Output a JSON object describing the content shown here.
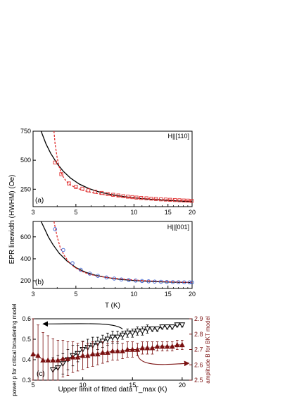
{
  "figure": {
    "shared_ylabel": "EPR linewidth (HWHM) (Oe)"
  },
  "chart_data": [
    {
      "type": "scatter",
      "panel_label": "(a)",
      "annotation": "H||[110]",
      "xlabel": "",
      "ylabel": "",
      "xscale": "log",
      "xlim": [
        3,
        20
      ],
      "ylim": [
        100,
        750
      ],
      "xticks": [
        3,
        5,
        10,
        15,
        20
      ],
      "yticks": [
        250,
        500,
        750
      ],
      "grid": false,
      "marker_color": "#e03030",
      "x": [
        3.9,
        4.2,
        4.6,
        5.0,
        5.4,
        5.8,
        6.3,
        6.8,
        7.3,
        7.8,
        8.3,
        8.8,
        9.3,
        9.8,
        10.3,
        10.9,
        11.6,
        12.3,
        13.0,
        13.8,
        14.6,
        15.4,
        16.3,
        17.2,
        18.1,
        19.0,
        19.9
      ],
      "y": [
        480,
        380,
        300,
        270,
        255,
        240,
        228,
        218,
        210,
        202,
        196,
        190,
        186,
        182,
        178,
        175,
        172,
        169,
        166,
        163,
        161,
        159,
        157,
        155,
        153,
        152,
        150
      ],
      "fits": [
        {
          "name": "critical",
          "style": "solid",
          "color": "#000000",
          "x": [
            3.3,
            3.5,
            3.7,
            4.0,
            4.3,
            4.7,
            5.2,
            5.8,
            6.5,
            7.3,
            8.3,
            9.5,
            11.0,
            13.0,
            15.5,
            18.0,
            20.0
          ],
          "y": [
            750,
            640,
            560,
            470,
            405,
            345,
            295,
            258,
            230,
            210,
            193,
            180,
            169,
            160,
            152,
            147,
            144
          ]
        },
        {
          "name": "BKT",
          "style": "dashed",
          "color": "#e03030",
          "x": [
            3.85,
            3.9,
            4.0,
            4.1,
            4.25,
            4.45,
            4.7,
            5.0,
            5.5,
            6.2,
            7.2,
            8.5,
            10.0,
            12.5,
            15.0,
            18.0,
            20.0
          ],
          "y": [
            750,
            640,
            520,
            440,
            370,
            320,
            285,
            262,
            238,
            218,
            200,
            186,
            176,
            166,
            159,
            152,
            149
          ]
        }
      ]
    },
    {
      "type": "scatter",
      "panel_label": "(b)",
      "annotation": "H||[001]",
      "xlabel": "T (K)",
      "ylabel": "",
      "xscale": "log",
      "xlim": [
        3,
        20
      ],
      "ylim": [
        130,
        740
      ],
      "xticks": [
        3,
        5,
        10,
        15,
        20
      ],
      "yticks": [
        200,
        400,
        600
      ],
      "grid": false,
      "marker_color": "#3a5fd0",
      "x": [
        3.9,
        4.3,
        4.8,
        5.3,
        5.9,
        6.5,
        7.2,
        7.9,
        8.6,
        9.4,
        10.2,
        11.0,
        11.9,
        12.8,
        13.8,
        14.8,
        15.9,
        17.0,
        18.2,
        19.4,
        20.0
      ],
      "y": [
        670,
        480,
        360,
        300,
        265,
        245,
        230,
        220,
        212,
        206,
        202,
        198,
        195,
        193,
        191,
        189,
        188,
        187,
        186,
        185,
        185
      ],
      "fits": [
        {
          "name": "critical",
          "style": "solid",
          "color": "#000000",
          "x": [
            3.3,
            3.45,
            3.6,
            3.8,
            4.1,
            4.5,
            5.0,
            5.6,
            6.3,
            7.2,
            8.3,
            9.7,
            11.5,
            13.5,
            16.0,
            18.5,
            20.0
          ],
          "y": [
            740,
            670,
            600,
            530,
            450,
            380,
            320,
            278,
            250,
            230,
            215,
            204,
            196,
            191,
            187,
            185,
            184
          ]
        },
        {
          "name": "BKT",
          "style": "dashed",
          "color": "#e03030",
          "x": [
            3.85,
            3.9,
            4.0,
            4.15,
            4.35,
            4.6,
            4.9,
            5.3,
            5.8,
            6.5,
            7.5,
            9.0,
            11.0,
            13.5,
            16.5,
            20.0
          ],
          "y": [
            740,
            690,
            600,
            500,
            430,
            370,
            325,
            290,
            262,
            242,
            226,
            213,
            202,
            195,
            189,
            185
          ]
        }
      ]
    },
    {
      "type": "scatter",
      "panel_label": "(c)",
      "xlabel": "Upper limit of fitted data T_max (K)",
      "ylabel": "power p for critical broadening model",
      "ylabel2": "amplitude B for BKT model",
      "xlim": [
        5,
        21
      ],
      "ylim": [
        0.3,
        0.6
      ],
      "ylim2": [
        2.5,
        2.9
      ],
      "xticks": [
        5,
        10,
        15,
        20
      ],
      "yticks": [
        0.3,
        0.4,
        0.5,
        0.6
      ],
      "yticks2": [
        2.5,
        2.6,
        2.7,
        2.8,
        2.9
      ],
      "grid": false,
      "series": [
        {
          "name": "",
          "axis": "left",
          "marker": "open-down-triangle",
          "color": "#000000",
          "x": [
            7.0,
            7.5,
            8.0,
            8.5,
            9.0,
            9.5,
            10.0,
            10.5,
            11.0,
            11.5,
            12.0,
            12.5,
            13.0,
            13.5,
            14.0,
            14.5,
            15.0,
            15.5,
            16.0,
            16.5,
            17.0,
            17.5,
            18.0,
            18.5,
            19.0,
            19.5,
            20.0
          ],
          "y": [
            0.35,
            0.36,
            0.38,
            0.4,
            0.42,
            0.43,
            0.45,
            0.46,
            0.47,
            0.48,
            0.49,
            0.5,
            0.51,
            0.51,
            0.52,
            0.53,
            0.53,
            0.54,
            0.54,
            0.55,
            0.55,
            0.55,
            0.56,
            0.56,
            0.56,
            0.57,
            0.57
          ],
          "err": [
            0.06,
            0.06,
            0.05,
            0.05,
            0.05,
            0.04,
            0.04,
            0.04,
            0.04,
            0.03,
            0.03,
            0.03,
            0.03,
            0.03,
            0.02,
            0.02,
            0.02,
            0.02,
            0.02,
            0.02,
            0.01,
            0.01,
            0.01,
            0.01,
            0.01,
            0.01,
            0.01
          ]
        },
        {
          "name": "",
          "axis": "right",
          "marker": "filled-up-triangle",
          "color": "#7a1010",
          "x": [
            5.0,
            5.5,
            6.0,
            6.5,
            7.0,
            7.5,
            8.0,
            8.5,
            9.0,
            9.5,
            10.0,
            10.5,
            11.0,
            11.5,
            12.0,
            12.5,
            13.0,
            13.5,
            14.0,
            14.5,
            15.0,
            15.5,
            16.0,
            16.5,
            17.0,
            17.5,
            18.0,
            18.5,
            19.0,
            19.5,
            20.0
          ],
          "y": [
            2.67,
            2.66,
            2.63,
            2.63,
            2.63,
            2.63,
            2.64,
            2.64,
            2.65,
            2.65,
            2.66,
            2.66,
            2.67,
            2.67,
            2.68,
            2.68,
            2.69,
            2.69,
            2.69,
            2.7,
            2.7,
            2.7,
            2.71,
            2.71,
            2.71,
            2.72,
            2.72,
            2.72,
            2.72,
            2.73,
            2.73
          ],
          "err": [
            0.23,
            0.2,
            0.18,
            0.16,
            0.14,
            0.13,
            0.12,
            0.11,
            0.1,
            0.09,
            0.09,
            0.08,
            0.08,
            0.07,
            0.07,
            0.06,
            0.06,
            0.06,
            0.05,
            0.05,
            0.05,
            0.04,
            0.04,
            0.04,
            0.04,
            0.03,
            0.03,
            0.03,
            0.03,
            0.03,
            0.03
          ]
        }
      ],
      "annotation_arrows": [
        {
          "target_axis": "left",
          "color": "#000000"
        },
        {
          "target_axis": "right",
          "color": "#7a1010"
        }
      ]
    }
  ]
}
